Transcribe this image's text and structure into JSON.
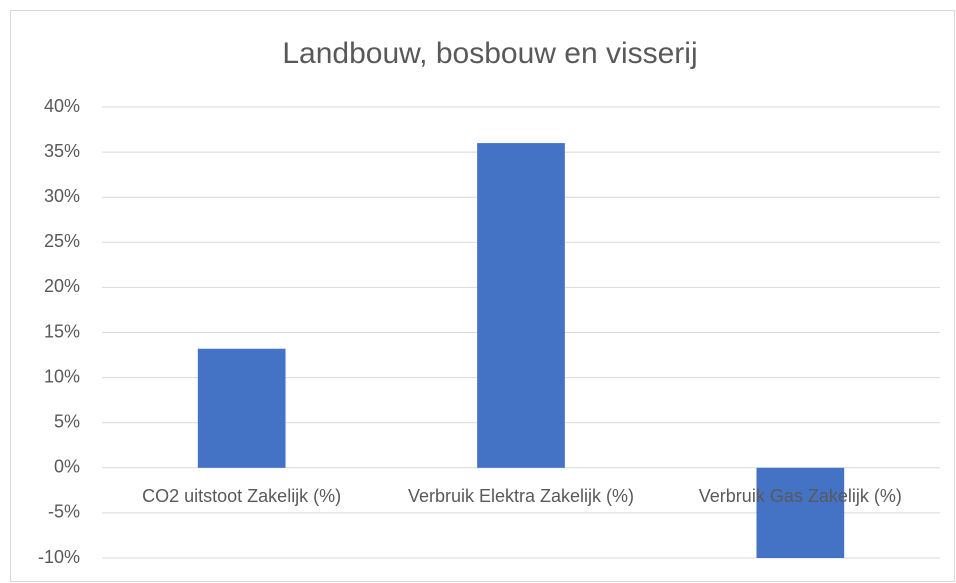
{
  "chart_data": {
    "type": "bar",
    "title": "Landbouw, bosbouw en visserij",
    "categories": [
      "CO2 uitstoot Zakelijk (%)",
      "Verbruik Elektra Zakelijk (%)",
      "Verbruik Gas Zakelijk (%)"
    ],
    "values": [
      13.2,
      36,
      -10
    ],
    "color": "#4472c4",
    "ylim": [
      -10,
      40
    ],
    "yticks": [
      {
        "value": -10,
        "label": "-10%"
      },
      {
        "value": -5,
        "label": "-5%"
      },
      {
        "value": 0,
        "label": "0%"
      },
      {
        "value": 5,
        "label": "5%"
      },
      {
        "value": 10,
        "label": "10%"
      },
      {
        "value": 15,
        "label": "15%"
      },
      {
        "value": 20,
        "label": "20%"
      },
      {
        "value": 25,
        "label": "25%"
      },
      {
        "value": 30,
        "label": "30%"
      },
      {
        "value": 35,
        "label": "35%"
      },
      {
        "value": 40,
        "label": "40%"
      }
    ],
    "grid": true
  }
}
